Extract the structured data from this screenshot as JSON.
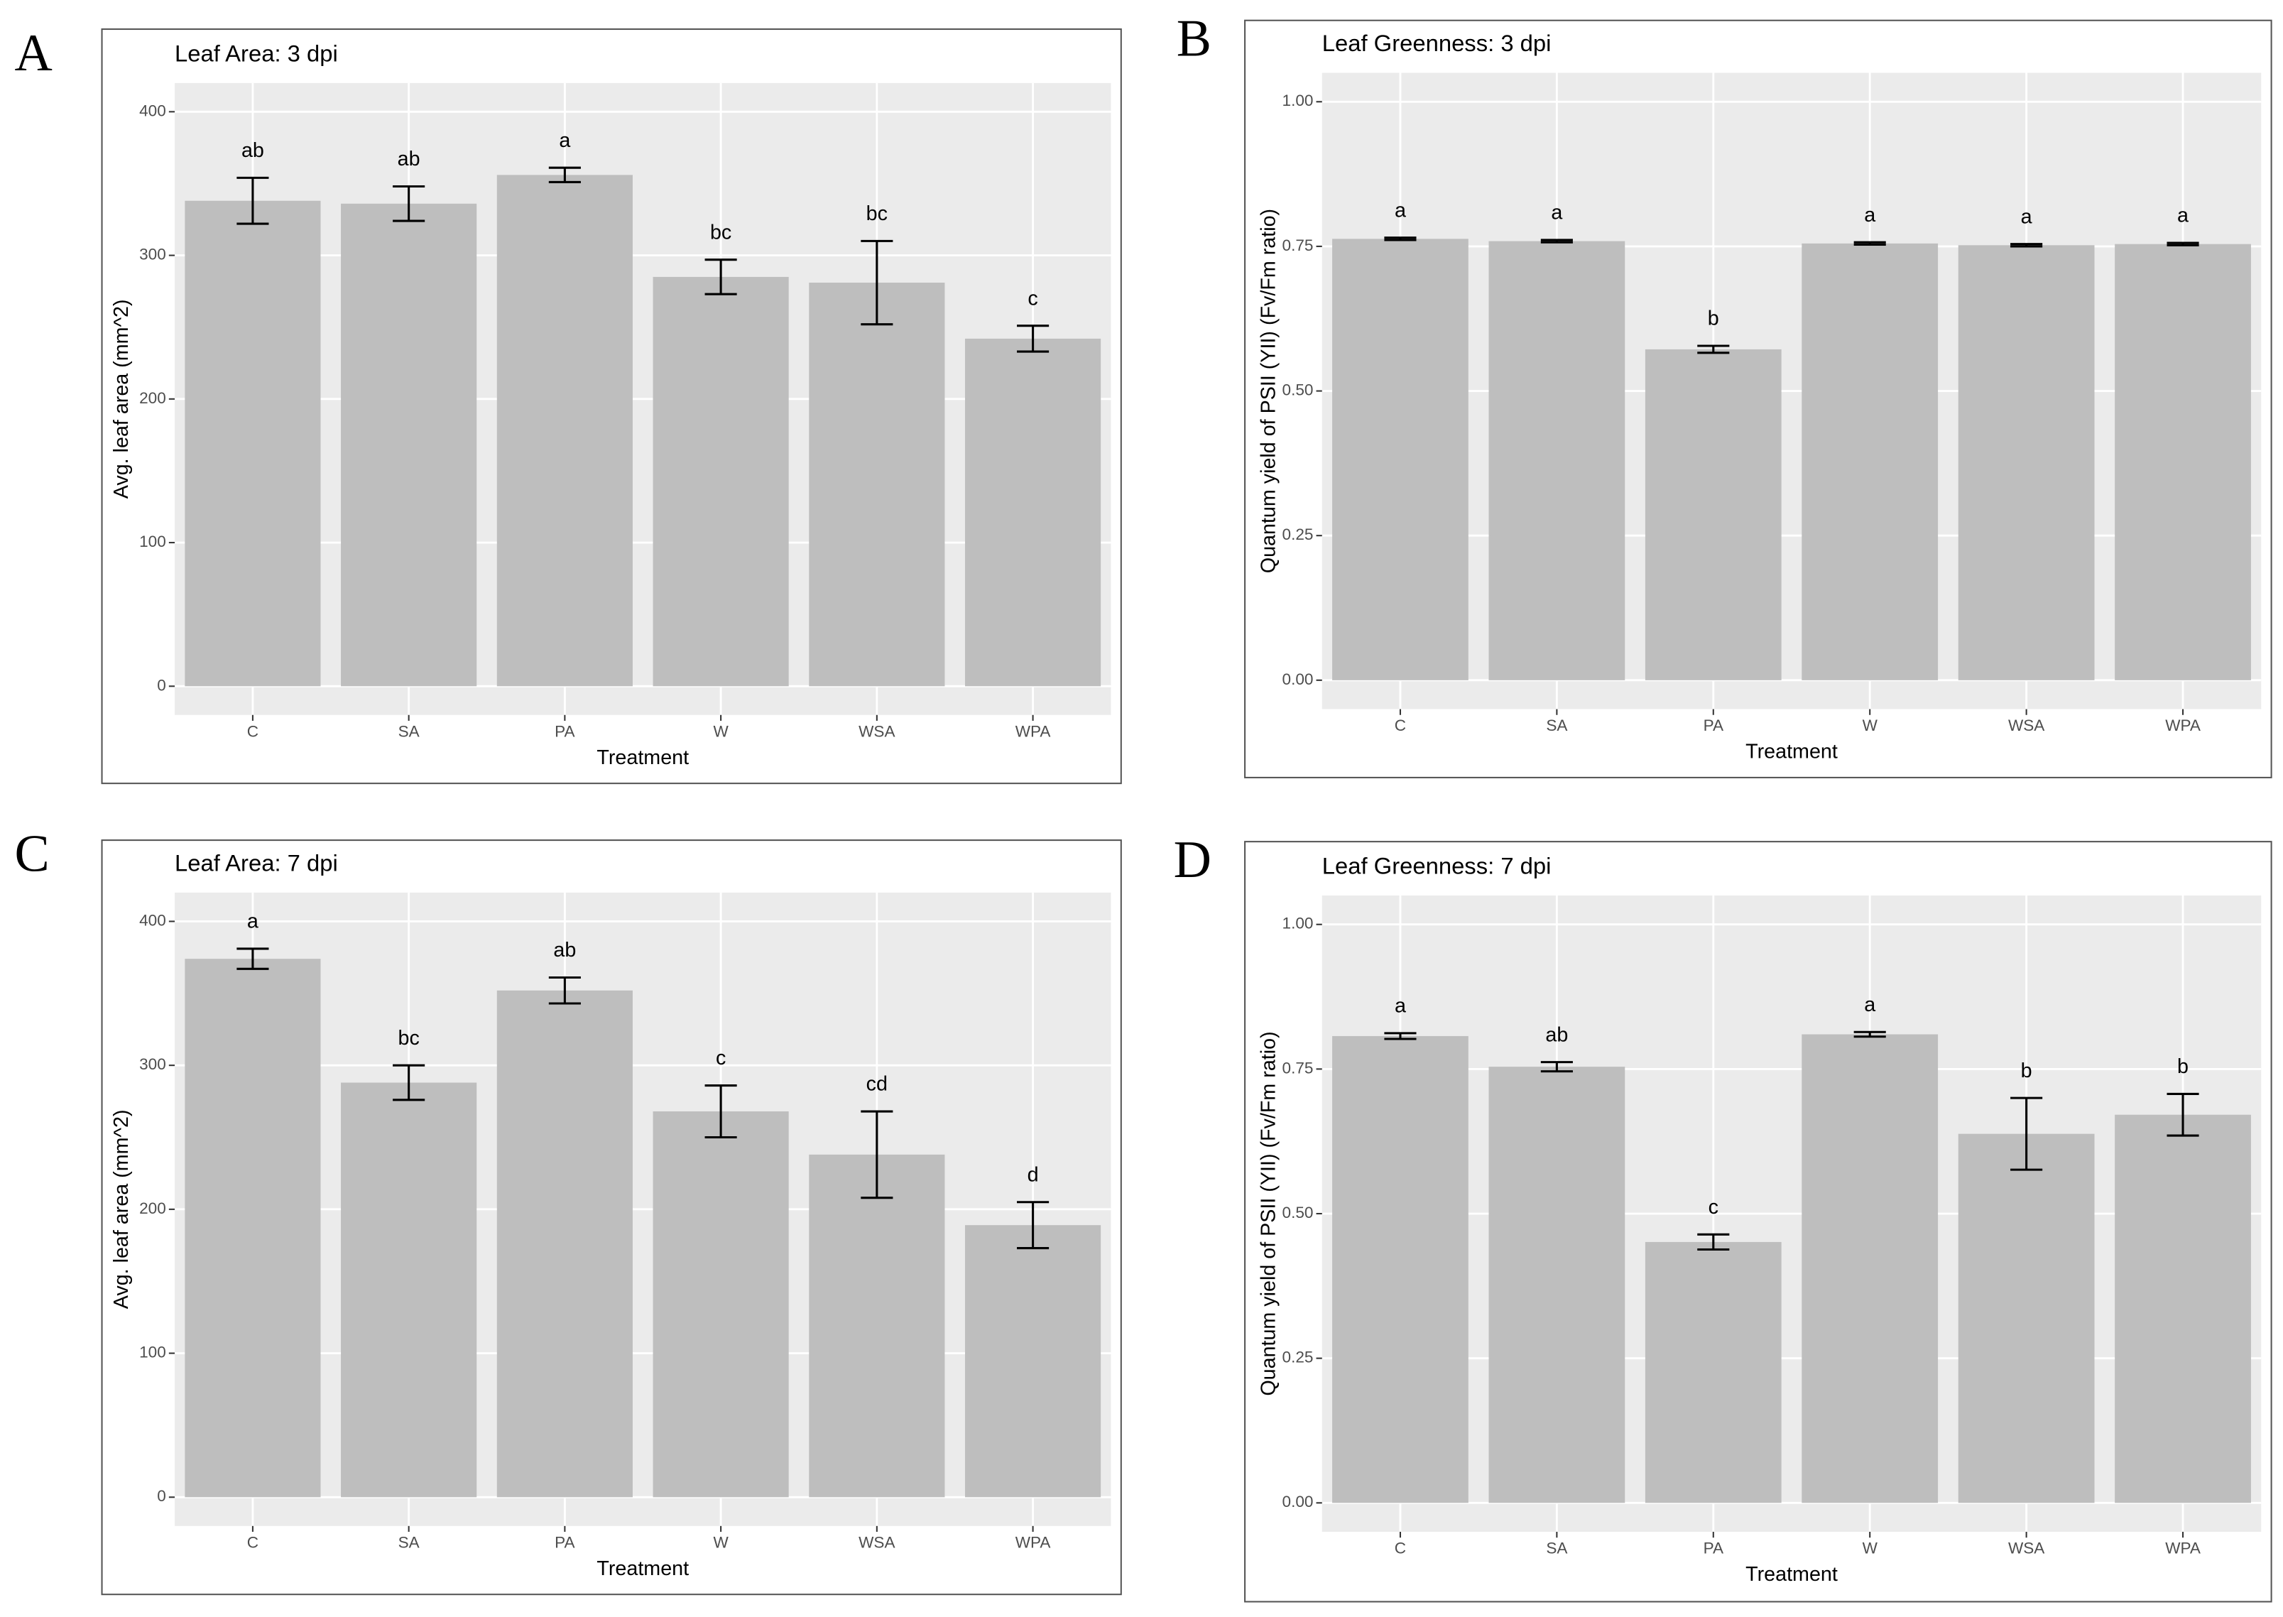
{
  "chart_data": [
    {
      "type": "bar",
      "panel_label": "A",
      "title": "Leaf Area: 3 dpi",
      "x_label": "Treatment",
      "y_label": "Avg. leaf area (mm^2)",
      "categories": [
        "C",
        "SA",
        "PA",
        "W",
        "WSA",
        "WPA"
      ],
      "values": [
        338,
        336,
        356,
        285,
        281,
        242
      ],
      "errors": [
        16,
        12,
        5,
        12,
        29,
        9
      ],
      "letters": [
        "ab",
        "ab",
        "a",
        "bc",
        "bc",
        "c"
      ],
      "color": "#bebebe",
      "ylim": [
        -20,
        420
      ],
      "yticks": [
        0,
        100,
        200,
        300,
        400
      ],
      "grid": true
    },
    {
      "type": "bar",
      "panel_label": "B",
      "title": "Leaf Greenness: 3 dpi",
      "x_label": "Treatment",
      "y_label": "Quantum yield of PSII (YII) (Fv/Fm ratio)",
      "categories": [
        "C",
        "SA",
        "PA",
        "W",
        "WSA",
        "WPA"
      ],
      "values": [
        0.763,
        0.759,
        0.572,
        0.755,
        0.752,
        0.754
      ],
      "errors": [
        0.002,
        0.002,
        0.006,
        0.002,
        0.002,
        0.002
      ],
      "letters": [
        "a",
        "a",
        "b",
        "a",
        "a",
        "a"
      ],
      "color": "#bebebe",
      "ylim": [
        -0.05,
        1.05
      ],
      "yticks": [
        {
          "value": 0,
          "label": "0.00"
        },
        {
          "value": 0.25,
          "label": "0.25"
        },
        {
          "value": 0.5,
          "label": "0.50"
        },
        {
          "value": 0.75,
          "label": "0.75"
        },
        {
          "value": 1,
          "label": "1.00"
        }
      ],
      "grid": true
    },
    {
      "type": "bar",
      "panel_label": "C",
      "title": "Leaf Area: 7 dpi",
      "x_label": "Treatment",
      "y_label": "Avg. leaf area (mm^2)",
      "categories": [
        "C",
        "SA",
        "PA",
        "W",
        "WSA",
        "WPA"
      ],
      "values": [
        374,
        288,
        352,
        268,
        238,
        189
      ],
      "errors": [
        7,
        12,
        9,
        18,
        30,
        16
      ],
      "letters": [
        "a",
        "bc",
        "ab",
        "c",
        "cd",
        "d"
      ],
      "color": "#bebebe",
      "ylim": [
        -20,
        420
      ],
      "yticks": [
        0,
        100,
        200,
        300,
        400
      ],
      "grid": true
    },
    {
      "type": "bar",
      "panel_label": "D",
      "title": "Leaf Greenness: 7 dpi",
      "x_label": "Treatment",
      "y_label": "Quantum yield of PSII (YII) (Fv/Fm ratio)",
      "categories": [
        "C",
        "SA",
        "PA",
        "W",
        "WSA",
        "WPA"
      ],
      "values": [
        0.807,
        0.754,
        0.451,
        0.81,
        0.638,
        0.671
      ],
      "errors": [
        0.005,
        0.008,
        0.013,
        0.004,
        0.062,
        0.036
      ],
      "letters": [
        "a",
        "ab",
        "c",
        "a",
        "b",
        "b"
      ],
      "color": "#bebebe",
      "ylim": [
        -0.05,
        1.05
      ],
      "yticks": [
        {
          "value": 0,
          "label": "0.00"
        },
        {
          "value": 0.25,
          "label": "0.25"
        },
        {
          "value": 0.5,
          "label": "0.50"
        },
        {
          "value": 0.75,
          "label": "0.75"
        },
        {
          "value": 1,
          "label": "1.00"
        }
      ],
      "grid": true
    }
  ]
}
